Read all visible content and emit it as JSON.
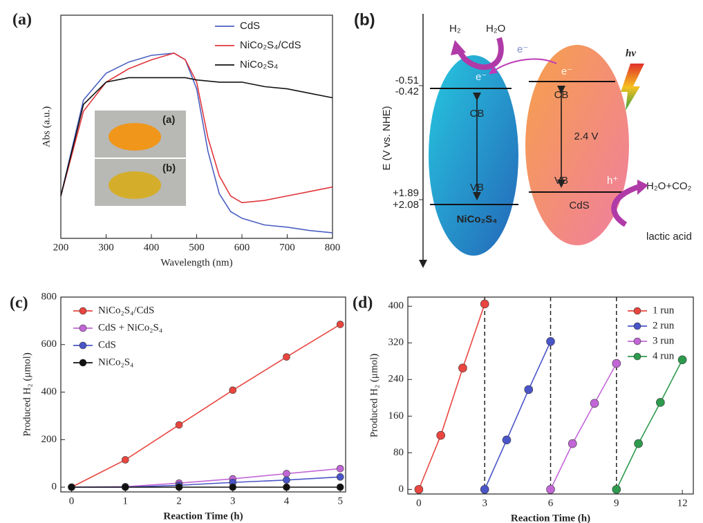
{
  "chart_data": [
    {
      "type": "line",
      "label": "(a)",
      "xlabel": "Wavelength (nm)",
      "ylabel": "Abs (a.u.)",
      "x": [
        200,
        250,
        300,
        350,
        400,
        450,
        475,
        500,
        525,
        550,
        575,
        600,
        650,
        700,
        750,
        800
      ],
      "xlim": [
        200,
        800
      ],
      "xticks": [
        200,
        300,
        400,
        500,
        600,
        700,
        800
      ],
      "ylim": [
        0,
        1
      ],
      "legend": "upper right",
      "series": [
        {
          "name": "CdS",
          "color": "#4a5fc1",
          "values": [
            0.19,
            0.62,
            0.74,
            0.79,
            0.82,
            0.83,
            0.8,
            0.67,
            0.39,
            0.2,
            0.12,
            0.09,
            0.06,
            0.05,
            0.035,
            0.025
          ]
        },
        {
          "name": "NiCo₂S₄/CdS",
          "color": "#e0353b",
          "values": [
            0.19,
            0.57,
            0.7,
            0.76,
            0.8,
            0.83,
            0.8,
            0.7,
            0.45,
            0.28,
            0.19,
            0.16,
            0.17,
            0.19,
            0.21,
            0.23
          ]
        },
        {
          "name": "NiCo₂S₄",
          "color": "#111111",
          "values": [
            0.19,
            0.6,
            0.7,
            0.72,
            0.72,
            0.72,
            0.72,
            0.71,
            0.705,
            0.7,
            0.7,
            0.7,
            0.68,
            0.67,
            0.65,
            0.63
          ]
        }
      ],
      "annotations": [
        "(a)",
        "(b)"
      ]
    },
    {
      "type": "line",
      "label": "(c)",
      "xlabel": "Reaction Time (h)",
      "ylabel": "Produced H₂ (μmol)",
      "x": [
        0,
        1,
        2,
        3,
        4,
        5
      ],
      "xlim": [
        -0.2,
        5.1
      ],
      "xticks": [
        0,
        1,
        2,
        3,
        4,
        5
      ],
      "ylim": [
        -20,
        800
      ],
      "yticks": [
        0,
        200,
        400,
        600,
        800
      ],
      "legend": "upper left",
      "markers": true,
      "series": [
        {
          "name": "NiCo₂S₄/CdS",
          "color": "#e8463f",
          "values": [
            0,
            115,
            262,
            408,
            548,
            685
          ]
        },
        {
          "name": "CdS + NiCo₂S₄",
          "color": "#c266d6",
          "values": [
            0,
            2,
            17,
            35,
            57,
            78
          ]
        },
        {
          "name": "CdS",
          "color": "#4a55c8",
          "values": [
            0,
            0,
            8,
            20,
            30,
            43
          ]
        },
        {
          "name": "NiCo₂S₄",
          "color": "#111111",
          "values": [
            0,
            0,
            0,
            0,
            0,
            0
          ]
        }
      ]
    },
    {
      "type": "line",
      "label": "(d)",
      "xlabel": "Reaction Time (h)",
      "ylabel": "Produced H₂ (μmol)",
      "xlim": [
        -0.5,
        12.5
      ],
      "xticks": [
        0,
        3,
        6,
        9,
        12
      ],
      "ylim": [
        -10,
        420
      ],
      "yticks": [
        0,
        80,
        160,
        240,
        320,
        400
      ],
      "legend": "upper right",
      "markers": true,
      "vlines": [
        3,
        6,
        9
      ],
      "series": [
        {
          "name": "1 run",
          "color": "#e8463f",
          "x": [
            0,
            1,
            2,
            3
          ],
          "values": [
            0,
            118,
            265,
            405
          ]
        },
        {
          "name": "2 run",
          "color": "#4a55c8",
          "x": [
            3,
            4,
            5,
            6
          ],
          "values": [
            0,
            108,
            218,
            323
          ]
        },
        {
          "name": "3 run",
          "color": "#c266d6",
          "x": [
            6,
            7,
            8,
            9
          ],
          "values": [
            0,
            100,
            188,
            275
          ]
        },
        {
          "name": "4 run",
          "color": "#2e9a4e",
          "x": [
            9,
            10,
            11,
            12
          ],
          "values": [
            0,
            100,
            190,
            283
          ]
        }
      ]
    }
  ],
  "diagram": {
    "label": "(b)",
    "axis_label": "E (V vs. NHE)",
    "ticks": [
      "-0.51",
      "-0.42",
      "+1.89",
      "+2.08"
    ],
    "h2": "H₂",
    "h2o": "H₂O",
    "electron": "e⁻",
    "hv": "hv",
    "cb": "CB",
    "vb": "VB",
    "gap": "2.4 V",
    "hole": "h⁺",
    "nico": "NiCo₂S₄",
    "cds": "CdS",
    "products": "H₂O+CO₂",
    "donor": "lactic acid"
  }
}
